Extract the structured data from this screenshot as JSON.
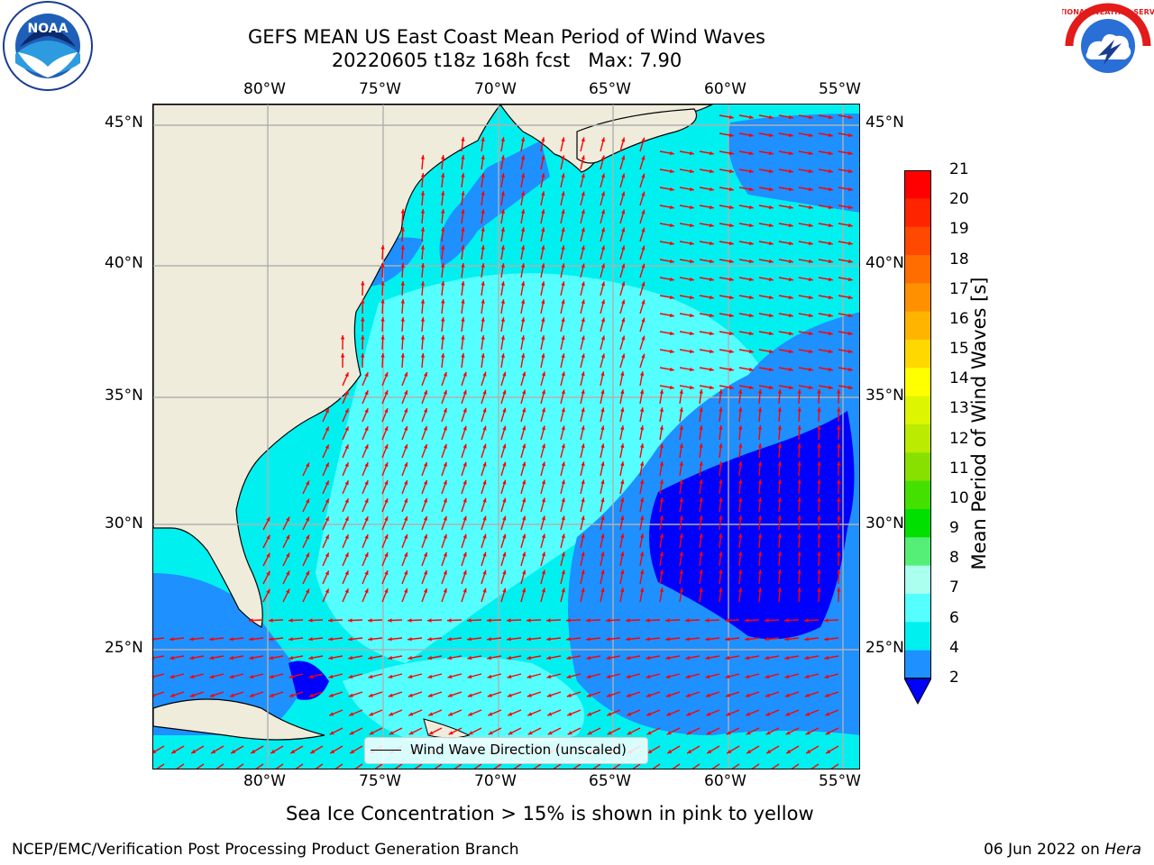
{
  "title": {
    "line1": "GEFS MEAN US East Coast Mean Period of Wind Waves",
    "line2": "20220605 t18z 168h fcst",
    "max_label": "Max: 7.90"
  },
  "logos": {
    "left": {
      "text": "NOAA",
      "icon": "noaa-logo"
    },
    "right": {
      "text": "NATIONAL WEATHER SERVICE",
      "icon": "nws-logo"
    }
  },
  "axes": {
    "lon_labels": [
      "80°W",
      "75°W",
      "70°W",
      "65°W",
      "60°W",
      "55°W"
    ],
    "lat_labels": [
      "45°N",
      "40°N",
      "35°N",
      "30°N",
      "25°N"
    ]
  },
  "map": {
    "land_color": "#efecdc",
    "grid_color": "#b0b0b0",
    "arrow_color": "#ff0000",
    "lon_range": [
      -85,
      -54.3
    ],
    "lat_range": [
      20.5,
      46
    ]
  },
  "legend": {
    "label": "Wind Wave Direction (unscaled)"
  },
  "colorbar": {
    "title": "Mean Period of Wind Waves [s]",
    "ticks": [
      "21",
      "20",
      "19",
      "18",
      "17",
      "16",
      "15",
      "14",
      "13",
      "12",
      "11",
      "10",
      "9",
      "8",
      "7",
      "6",
      "4",
      "2"
    ],
    "colors": [
      "#ff0000",
      "#ff2400",
      "#ff4800",
      "#ff6c00",
      "#ff9000",
      "#ffb400",
      "#ffd800",
      "#ffff00",
      "#ddf500",
      "#bbeb00",
      "#88e000",
      "#44e000",
      "#00e000",
      "#55ee77",
      "#aaffee",
      "#55ffff",
      "#00f0f0",
      "#1e90ff"
    ],
    "under_color": "#0000ff"
  },
  "chart_data": {
    "type": "heatmap",
    "title": "GEFS MEAN US East Coast Mean Period of Wind Waves",
    "subtitle": "20220605 t18z 168h fcst   Max: 7.90",
    "colorbar_label": "Mean Period of Wind Waves [s]",
    "colorbar_levels": [
      2,
      4,
      6,
      7,
      8,
      9,
      10,
      11,
      12,
      13,
      14,
      15,
      16,
      17,
      18,
      19,
      20,
      21
    ],
    "lon_ticks": [
      -80,
      -75,
      -70,
      -65,
      -60,
      -55
    ],
    "lat_ticks": [
      45,
      40,
      35,
      30,
      25
    ],
    "max_value": 7.9
  },
  "note": "Sea Ice Concentration > 15% is shown in pink to yellow",
  "footer": {
    "left": "NCEP/EMC/Verification Post Processing Product Generation Branch",
    "right_date": "06 Jun 2022 on",
    "right_host": "Hera"
  }
}
